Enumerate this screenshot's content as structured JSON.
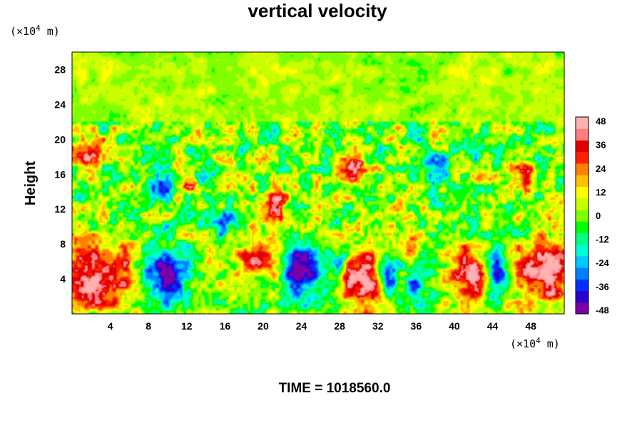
{
  "chart_data": {
    "type": "heatmap",
    "title": "vertical velocity",
    "ylabel": "Height",
    "x_unit": [
      "(×10",
      "4",
      " m)"
    ],
    "y_unit": [
      "(×10",
      "4",
      " m)"
    ],
    "xlim": [
      0,
      51.5
    ],
    "ylim": [
      0,
      30
    ],
    "x_ticks": [
      4,
      8,
      12,
      16,
      20,
      24,
      28,
      32,
      36,
      40,
      44,
      48
    ],
    "y_ticks": [
      4,
      8,
      12,
      16,
      20,
      24,
      28
    ],
    "colorbar": {
      "ticks": [
        48,
        36,
        24,
        12,
        0,
        -12,
        -24,
        -36,
        -48
      ],
      "range": [
        -50,
        50
      ],
      "colors": [
        "#7a00a8",
        "#2a00d0",
        "#0030ff",
        "#0080ff",
        "#00c8ff",
        "#00ffd0",
        "#00ff80",
        "#00ff00",
        "#80ff00",
        "#c8ff00",
        "#ffff00",
        "#ffc000",
        "#ff8000",
        "#ff2000",
        "#e00000",
        "#ff8080",
        "#ffb0b0"
      ]
    },
    "features": [
      {
        "kind": "up",
        "x": 2.5,
        "y": 4.5,
        "rx": 5,
        "ry": 4.5,
        "v": 50
      },
      {
        "kind": "up",
        "x": 49.5,
        "y": 5,
        "rx": 3.5,
        "ry": 4.5,
        "v": 50
      },
      {
        "kind": "up",
        "x": 30.5,
        "y": 4,
        "rx": 2.8,
        "ry": 4,
        "v": 50
      },
      {
        "kind": "up",
        "x": 41.5,
        "y": 4.5,
        "rx": 2.5,
        "ry": 3.5,
        "v": 42
      },
      {
        "kind": "up",
        "x": 19.5,
        "y": 6.5,
        "rx": 2.5,
        "ry": 2.2,
        "v": 46
      },
      {
        "kind": "up",
        "x": 21.5,
        "y": 12.5,
        "rx": 1.2,
        "ry": 2,
        "v": 44
      },
      {
        "kind": "up",
        "x": 2,
        "y": 18.5,
        "rx": 2.5,
        "ry": 1.8,
        "v": 34
      },
      {
        "kind": "up",
        "x": 29.5,
        "y": 16.5,
        "rx": 1.5,
        "ry": 2,
        "v": 34
      },
      {
        "kind": "up",
        "x": 12.5,
        "y": 15,
        "rx": 1.2,
        "ry": 1.5,
        "v": 30
      },
      {
        "kind": "up",
        "x": 47,
        "y": 16,
        "rx": 1.5,
        "ry": 2,
        "v": 26
      },
      {
        "kind": "up",
        "x": 35.5,
        "y": 8,
        "rx": 1.2,
        "ry": 1.5,
        "v": 24
      },
      {
        "kind": "down",
        "x": 9.5,
        "y": 4.5,
        "rx": 2.8,
        "ry": 3.8,
        "v": -48
      },
      {
        "kind": "down",
        "x": 24,
        "y": 5,
        "rx": 2.2,
        "ry": 3.5,
        "v": -48
      },
      {
        "kind": "down",
        "x": 33,
        "y": 4.5,
        "rx": 1.5,
        "ry": 3,
        "v": -48
      },
      {
        "kind": "down",
        "x": 44.5,
        "y": 5,
        "rx": 1.5,
        "ry": 3,
        "v": -44
      },
      {
        "kind": "down",
        "x": 36,
        "y": 3,
        "rx": 1.3,
        "ry": 2,
        "v": -40
      },
      {
        "kind": "down",
        "x": 16,
        "y": 10.5,
        "rx": 1.8,
        "ry": 1.5,
        "v": -34
      },
      {
        "kind": "down",
        "x": 9,
        "y": 14.5,
        "rx": 1.2,
        "ry": 1.6,
        "v": -40
      },
      {
        "kind": "down",
        "x": 38,
        "y": 17,
        "rx": 2.2,
        "ry": 2.2,
        "v": -32
      },
      {
        "kind": "down",
        "x": 14,
        "y": 16,
        "rx": 1.2,
        "ry": 1.5,
        "v": -28
      },
      {
        "kind": "down",
        "x": 28,
        "y": 6,
        "rx": 1,
        "ry": 1.5,
        "v": -36
      },
      {
        "kind": "down",
        "x": 46,
        "y": 9.5,
        "rx": 1.5,
        "ry": 1,
        "v": -22
      }
    ]
  },
  "footer": {
    "time_label": "TIME = 1018560.0"
  }
}
